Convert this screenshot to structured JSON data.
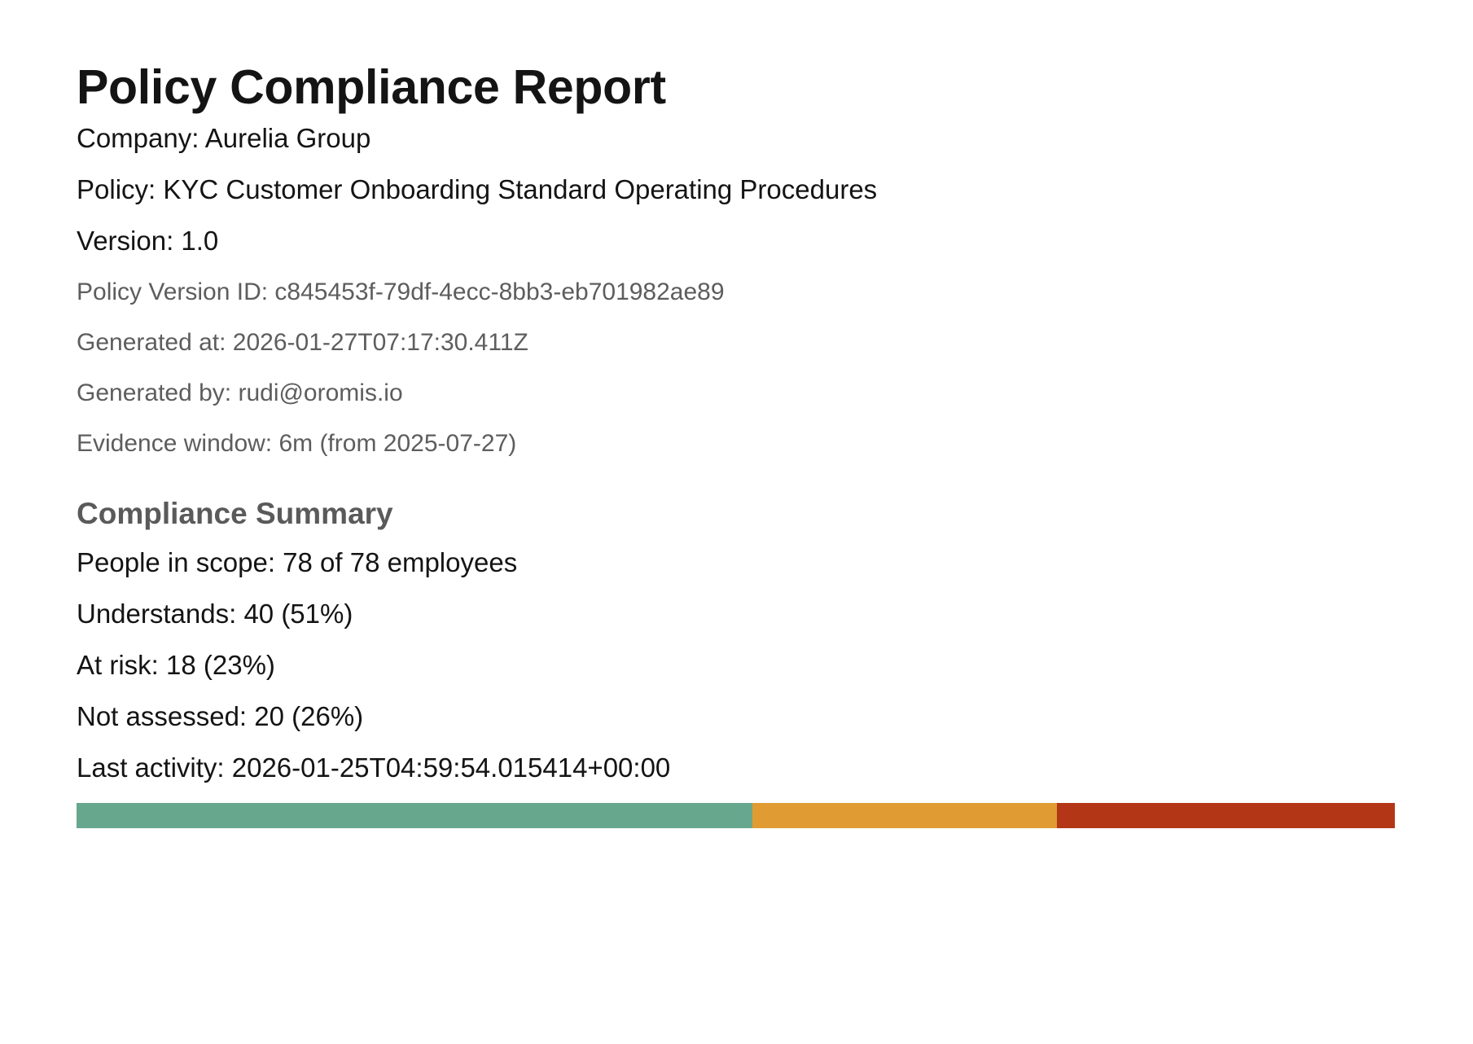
{
  "report": {
    "title": "Policy Compliance Report",
    "company_line": "Company: Aurelia Group",
    "policy_line": "Policy: KYC Customer Onboarding Standard Operating Procedures",
    "version_line": "Version: 1.0",
    "policy_version_id_line": "Policy Version ID: c845453f-79df-4ecc-8bb3-eb701982ae89",
    "generated_at_line": "Generated at: 2026-01-27T07:17:30.411Z",
    "generated_by_line": "Generated by: rudi@oromis.io",
    "evidence_window_line": "Evidence window: 6m (from 2025-07-27)"
  },
  "summary": {
    "title": "Compliance Summary",
    "people_in_scope_line": "People in scope: 78 of 78 employees",
    "understands_line": "Understands: 40 (51%)",
    "at_risk_line": "At risk: 18 (23%)",
    "not_assessed_line": "Not assessed: 20 (26%)",
    "last_activity_line": "Last activity: 2026-01-25T04:59:54.015414+00:00"
  },
  "progress_bar": {
    "segments": [
      {
        "key": "understands",
        "value": 40,
        "color": "#67a78d"
      },
      {
        "key": "at_risk",
        "value": 18,
        "color": "#e09c33"
      },
      {
        "key": "not_assessed",
        "value": 20,
        "color": "#b33617"
      }
    ]
  }
}
